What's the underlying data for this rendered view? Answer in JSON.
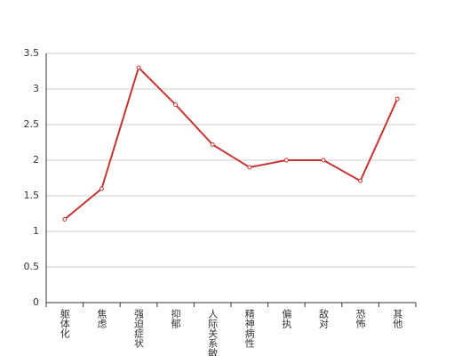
{
  "chart_data": {
    "type": "line",
    "categories": [
      "躯体化",
      "焦虑",
      "强迫症状",
      "抑郁",
      "人际关系敏感",
      "精神病性",
      "偏执",
      "敌对",
      "恐怖",
      "其他"
    ],
    "series": [
      {
        "color": "#c23531",
        "values": [
          1.17,
          1.6,
          3.3,
          2.78,
          2.22,
          1.9,
          2.0,
          2.0,
          1.71,
          2.86
        ]
      }
    ],
    "ylim": [
      0,
      3.5
    ],
    "yticks": [
      0,
      0.5,
      1,
      1.5,
      2,
      2.5,
      3,
      3.5
    ],
    "grid": true
  }
}
